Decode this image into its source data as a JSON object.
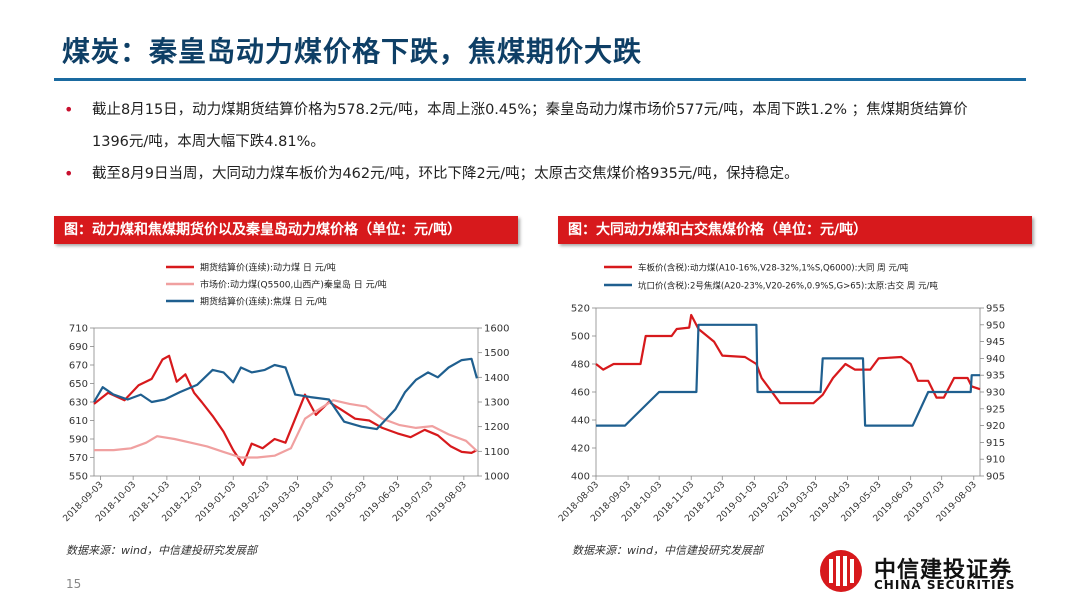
{
  "slide": {
    "title": "煤炭：秦皇岛动力煤价格下跌，焦煤期价大跌",
    "bullets": [
      "截止8月15日，动力煤期货结算价格为578.2元/吨，本周上涨0.45%；秦皇岛动力煤市场价577元/吨，本周下跌1.2% ；焦煤期货结算价1396元/吨，本周大幅下跌4.81%。",
      "截至8月9日当周，大同动力煤车板价为462元/吨，环比下降2元/吨；太原古交焦煤价格935元/吨，保持稳定。"
    ],
    "page_number": "15",
    "logo": {
      "cn": "中信建投证券",
      "en": "CHINA SECURITIES"
    },
    "colors": {
      "title": "#0e3f66",
      "accent": "#d7191c",
      "red": "#d7191c",
      "pink": "#f0a0a0",
      "blue": "#1f5f8f"
    }
  },
  "charts": [
    {
      "caption": "图：动力煤和焦煤期货价以及秦皇岛动力煤价格（单位：元/吨）",
      "source": "数据来源：wind，中信建投研究发展部"
    },
    {
      "caption": "图：大同动力煤和古交焦煤价格（单位：元/吨）",
      "source": "数据来源：wind，中信建投研究发展部"
    }
  ],
  "chart_data": [
    {
      "type": "line",
      "title": "",
      "x_ticks": [
        "2018-09-03",
        "2018-10-03",
        "2018-11-03",
        "2018-12-03",
        "2019-01-03",
        "2019-02-03",
        "2019-03-03",
        "2019-04-03",
        "2019-05-03",
        "2019-06-03",
        "2019-07-03",
        "2019-08-03"
      ],
      "x_range": [
        "2018-08-28",
        "2019-08-16"
      ],
      "ylim_left": [
        550,
        710
      ],
      "yticks_left": [
        550,
        570,
        590,
        610,
        630,
        650,
        670,
        690,
        710
      ],
      "ylim_right": [
        1000,
        1600
      ],
      "yticks_right": [
        1000,
        1100,
        1200,
        1300,
        1400,
        1500,
        1600
      ],
      "legend_position": "top-left",
      "series": [
        {
          "name": "期货结算价(连续):动力煤 日 元/吨",
          "axis": "left",
          "color": "#d7191c",
          "points": [
            [
              "2018-08-28",
              628
            ],
            [
              "2018-09-10",
              640
            ],
            [
              "2018-09-25",
              632
            ],
            [
              "2018-10-08",
              648
            ],
            [
              "2018-10-20",
              655
            ],
            [
              "2018-10-30",
              676
            ],
            [
              "2018-11-05",
              680
            ],
            [
              "2018-11-12",
              652
            ],
            [
              "2018-11-20",
              660
            ],
            [
              "2018-11-28",
              640
            ],
            [
              "2018-12-05",
              630
            ],
            [
              "2018-12-15",
              615
            ],
            [
              "2018-12-25",
              598
            ],
            [
              "2019-01-03",
              578
            ],
            [
              "2019-01-12",
              562
            ],
            [
              "2019-01-20",
              585
            ],
            [
              "2019-01-30",
              580
            ],
            [
              "2019-02-10",
              590
            ],
            [
              "2019-02-20",
              586
            ],
            [
              "2019-03-01",
              612
            ],
            [
              "2019-03-10",
              638
            ],
            [
              "2019-03-20",
              616
            ],
            [
              "2019-04-01",
              630
            ],
            [
              "2019-04-12",
              622
            ],
            [
              "2019-04-25",
              612
            ],
            [
              "2019-05-08",
              610
            ],
            [
              "2019-05-20",
              602
            ],
            [
              "2019-06-03",
              596
            ],
            [
              "2019-06-15",
              592
            ],
            [
              "2019-06-28",
              600
            ],
            [
              "2019-07-10",
              594
            ],
            [
              "2019-07-22",
              582
            ],
            [
              "2019-08-01",
              576
            ],
            [
              "2019-08-10",
              575
            ],
            [
              "2019-08-15",
              578
            ]
          ]
        },
        {
          "name": "市场价:动力煤(Q5500,山西产)秦皇岛 日 元/吨",
          "axis": "left",
          "color": "#f0a0a0",
          "points": [
            [
              "2018-08-28",
              578
            ],
            [
              "2018-09-15",
              578
            ],
            [
              "2018-10-01",
              580
            ],
            [
              "2018-10-15",
              586
            ],
            [
              "2018-10-25",
              593
            ],
            [
              "2018-11-10",
              590
            ],
            [
              "2018-11-25",
              586
            ],
            [
              "2018-12-10",
              582
            ],
            [
              "2018-12-25",
              576
            ],
            [
              "2019-01-10",
              570
            ],
            [
              "2019-01-25",
              570
            ],
            [
              "2019-02-10",
              572
            ],
            [
              "2019-02-25",
              580
            ],
            [
              "2019-03-10",
              612
            ],
            [
              "2019-03-20",
              620
            ],
            [
              "2019-04-05",
              632
            ],
            [
              "2019-04-20",
              628
            ],
            [
              "2019-05-05",
              625
            ],
            [
              "2019-05-20",
              612
            ],
            [
              "2019-06-05",
              605
            ],
            [
              "2019-06-20",
              602
            ],
            [
              "2019-07-05",
              604
            ],
            [
              "2019-07-20",
              595
            ],
            [
              "2019-08-05",
              588
            ],
            [
              "2019-08-15",
              577
            ]
          ]
        },
        {
          "name": "期货结算价(连续):焦煤 日 元/吨",
          "axis": "right",
          "color": "#1f5f8f",
          "points": [
            [
              "2018-08-28",
              1300
            ],
            [
              "2018-09-05",
              1360
            ],
            [
              "2018-09-15",
              1330
            ],
            [
              "2018-09-28",
              1310
            ],
            [
              "2018-10-10",
              1330
            ],
            [
              "2018-10-20",
              1300
            ],
            [
              "2018-11-01",
              1310
            ],
            [
              "2018-11-15",
              1340
            ],
            [
              "2018-12-01",
              1370
            ],
            [
              "2018-12-15",
              1430
            ],
            [
              "2018-12-25",
              1420
            ],
            [
              "2019-01-03",
              1380
            ],
            [
              "2019-01-10",
              1440
            ],
            [
              "2019-01-20",
              1420
            ],
            [
              "2019-02-01",
              1430
            ],
            [
              "2019-02-10",
              1450
            ],
            [
              "2019-02-20",
              1440
            ],
            [
              "2019-03-01",
              1330
            ],
            [
              "2019-03-15",
              1320
            ],
            [
              "2019-04-01",
              1310
            ],
            [
              "2019-04-15",
              1220
            ],
            [
              "2019-05-01",
              1200
            ],
            [
              "2019-05-15",
              1190
            ],
            [
              "2019-06-01",
              1270
            ],
            [
              "2019-06-10",
              1340
            ],
            [
              "2019-06-20",
              1390
            ],
            [
              "2019-07-01",
              1420
            ],
            [
              "2019-07-10",
              1400
            ],
            [
              "2019-07-20",
              1440
            ],
            [
              "2019-08-01",
              1470
            ],
            [
              "2019-08-10",
              1475
            ],
            [
              "2019-08-15",
              1396
            ]
          ]
        }
      ]
    },
    {
      "type": "line",
      "title": "",
      "x_ticks": [
        "2018-08-03",
        "2018-09-03",
        "2018-10-03",
        "2018-11-03",
        "2018-12-03",
        "2019-01-03",
        "2019-02-03",
        "2019-03-03",
        "2019-04-03",
        "2019-05-03",
        "2019-06-03",
        "2019-07-03",
        "2019-08-03"
      ],
      "x_range": [
        "2018-08-03",
        "2019-08-09"
      ],
      "ylim_left": [
        400,
        520
      ],
      "yticks_left": [
        400,
        420,
        440,
        460,
        480,
        500,
        520
      ],
      "ylim_right": [
        905,
        955
      ],
      "yticks_right": [
        905,
        910,
        915,
        920,
        925,
        930,
        935,
        940,
        945,
        950,
        955
      ],
      "legend_position": "top-left",
      "series": [
        {
          "name": "车板价(含税):动力煤(A10-16%,V28-32%,1%S,Q6000):大同 周 元/吨",
          "axis": "left",
          "color": "#d7191c",
          "points": [
            [
              "2018-08-03",
              480
            ],
            [
              "2018-08-10",
              476
            ],
            [
              "2018-08-20",
              480
            ],
            [
              "2018-09-15",
              480
            ],
            [
              "2018-09-20",
              500
            ],
            [
              "2018-10-15",
              500
            ],
            [
              "2018-10-20",
              505
            ],
            [
              "2018-11-01",
              506
            ],
            [
              "2018-11-03",
              515
            ],
            [
              "2018-11-10",
              505
            ],
            [
              "2018-11-25",
              496
            ],
            [
              "2018-12-03",
              486
            ],
            [
              "2018-12-25",
              485
            ],
            [
              "2019-01-05",
              480
            ],
            [
              "2019-01-10",
              470
            ],
            [
              "2019-01-20",
              460
            ],
            [
              "2019-01-28",
              452
            ],
            [
              "2019-03-01",
              452
            ],
            [
              "2019-03-10",
              458
            ],
            [
              "2019-03-20",
              470
            ],
            [
              "2019-04-01",
              480
            ],
            [
              "2019-04-10",
              476
            ],
            [
              "2019-04-25",
              476
            ],
            [
              "2019-05-03",
              484
            ],
            [
              "2019-05-25",
              485
            ],
            [
              "2019-06-03",
              480
            ],
            [
              "2019-06-10",
              468
            ],
            [
              "2019-06-20",
              468
            ],
            [
              "2019-06-28",
              456
            ],
            [
              "2019-07-05",
              456
            ],
            [
              "2019-07-15",
              470
            ],
            [
              "2019-07-28",
              470
            ],
            [
              "2019-08-01",
              464
            ],
            [
              "2019-08-09",
              462
            ]
          ]
        },
        {
          "name": "坑口价(含税):2号焦煤(A20-23%,V20-26%,0.9%S,G>65):太原:古交 周 元/吨",
          "axis": "right",
          "color": "#1f5f8f",
          "points": [
            [
              "2018-08-03",
              920
            ],
            [
              "2018-08-31",
              920
            ],
            [
              "2018-10-03",
              930
            ],
            [
              "2018-11-08",
              930
            ],
            [
              "2018-11-10",
              950
            ],
            [
              "2019-01-05",
              950
            ],
            [
              "2019-01-06",
              930
            ],
            [
              "2019-03-08",
              930
            ],
            [
              "2019-03-10",
              940
            ],
            [
              "2019-04-18",
              940
            ],
            [
              "2019-04-20",
              920
            ],
            [
              "2019-06-05",
              920
            ],
            [
              "2019-06-20",
              930
            ],
            [
              "2019-07-31",
              930
            ],
            [
              "2019-08-01",
              935
            ],
            [
              "2019-08-09",
              935
            ]
          ]
        }
      ]
    }
  ]
}
